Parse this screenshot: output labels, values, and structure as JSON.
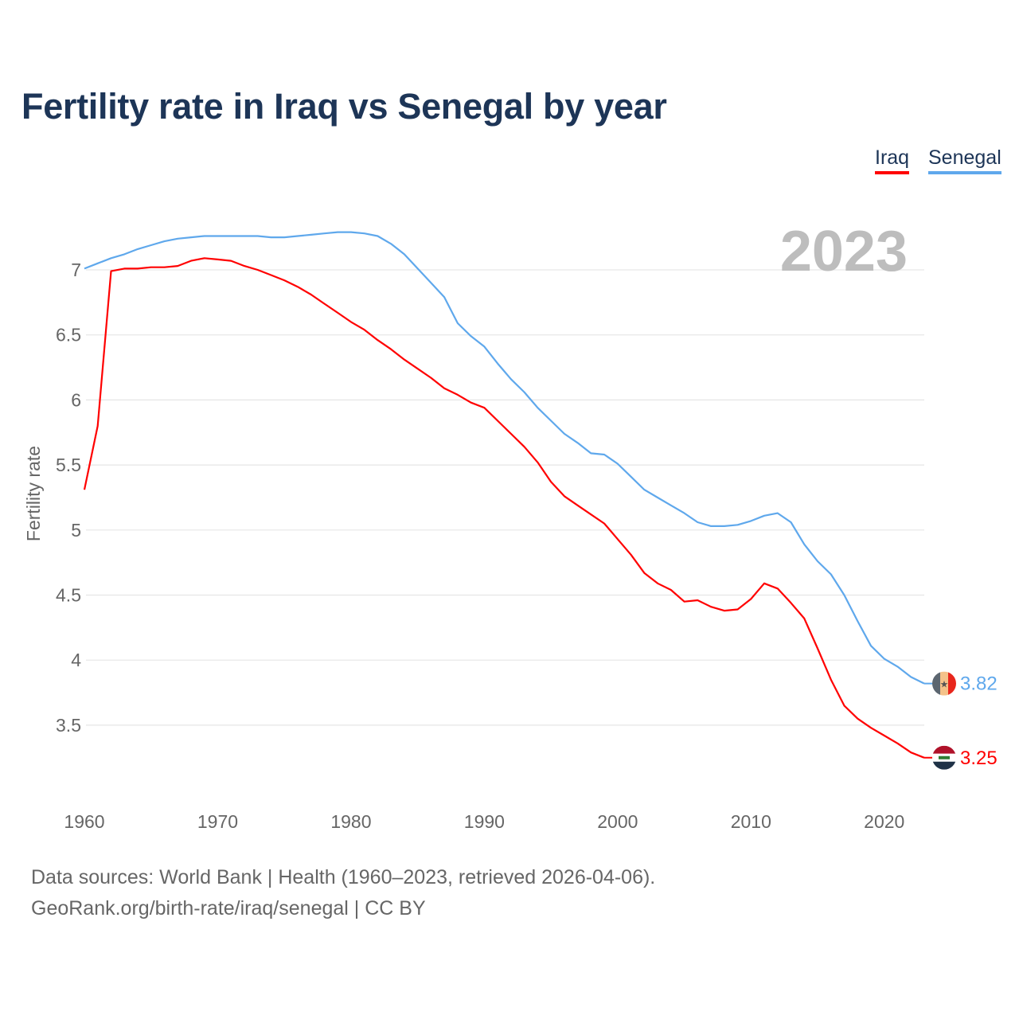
{
  "chart_data": {
    "type": "line",
    "title": "Fertility rate in Iraq vs Senegal by year",
    "xlabel": "",
    "ylabel": "Fertility rate",
    "xlim": [
      1960,
      2023
    ],
    "ylim": [
      3.0,
      7.35
    ],
    "yticks": [
      3.5,
      4,
      4.5,
      5,
      5.5,
      6,
      6.5,
      7
    ],
    "ytick_labels": [
      "3.5",
      "4",
      "4.5",
      "5",
      "5.5",
      "6",
      "6.5",
      "7"
    ],
    "xticks": [
      1960,
      1970,
      1980,
      1990,
      2000,
      2010,
      2020
    ],
    "xtick_labels": [
      "1960",
      "1970",
      "1980",
      "1990",
      "2000",
      "2010",
      "2020"
    ],
    "grid": true,
    "legend_placement": "top-right",
    "year_label": "2023",
    "x": [
      1960,
      1961,
      1962,
      1963,
      1964,
      1965,
      1966,
      1967,
      1968,
      1969,
      1970,
      1971,
      1972,
      1973,
      1974,
      1975,
      1976,
      1977,
      1978,
      1979,
      1980,
      1981,
      1982,
      1983,
      1984,
      1985,
      1986,
      1987,
      1988,
      1989,
      1990,
      1991,
      1992,
      1993,
      1994,
      1995,
      1996,
      1997,
      1998,
      1999,
      2000,
      2001,
      2002,
      2003,
      2004,
      2005,
      2006,
      2007,
      2008,
      2009,
      2010,
      2011,
      2012,
      2013,
      2014,
      2015,
      2016,
      2017,
      2018,
      2019,
      2020,
      2021,
      2022,
      2023
    ],
    "series": [
      {
        "name": "Iraq",
        "color": "#ff0000",
        "end_label": "3.25",
        "values": [
          5.31,
          5.8,
          6.99,
          7.01,
          7.01,
          7.02,
          7.02,
          7.03,
          7.07,
          7.09,
          7.08,
          7.07,
          7.03,
          7.0,
          6.96,
          6.92,
          6.87,
          6.81,
          6.74,
          6.67,
          6.6,
          6.54,
          6.46,
          6.39,
          6.31,
          6.24,
          6.17,
          6.09,
          6.04,
          5.98,
          5.94,
          5.84,
          5.74,
          5.64,
          5.52,
          5.37,
          5.26,
          5.19,
          5.12,
          5.05,
          4.93,
          4.81,
          4.67,
          4.59,
          4.54,
          4.45,
          4.46,
          4.41,
          4.38,
          4.39,
          4.47,
          4.59,
          4.55,
          4.44,
          4.32,
          4.09,
          3.85,
          3.65,
          3.55,
          3.48,
          3.42,
          3.36,
          3.29,
          3.25
        ]
      },
      {
        "name": "Senegal",
        "color": "#5fa8ec",
        "end_label": "3.82",
        "values": [
          7.01,
          7.05,
          7.09,
          7.12,
          7.16,
          7.19,
          7.22,
          7.24,
          7.25,
          7.26,
          7.26,
          7.26,
          7.26,
          7.26,
          7.25,
          7.25,
          7.26,
          7.27,
          7.28,
          7.29,
          7.29,
          7.28,
          7.26,
          7.2,
          7.12,
          7.01,
          6.9,
          6.79,
          6.59,
          6.49,
          6.41,
          6.28,
          6.16,
          6.06,
          5.94,
          5.84,
          5.74,
          5.67,
          5.59,
          5.58,
          5.51,
          5.41,
          5.31,
          5.25,
          5.19,
          5.13,
          5.06,
          5.03,
          5.03,
          5.04,
          5.07,
          5.11,
          5.13,
          5.06,
          4.89,
          4.76,
          4.66,
          4.5,
          4.3,
          4.11,
          4.01,
          3.95,
          3.87,
          3.82
        ]
      }
    ]
  },
  "legend": {
    "iraq": "Iraq",
    "senegal": "Senegal"
  },
  "footer": {
    "line1": "Data sources: World Bank | Health (1960–2023, retrieved 2026-04-06).",
    "line2": "GeoRank.org/birth-rate/iraq/senegal | CC BY"
  }
}
